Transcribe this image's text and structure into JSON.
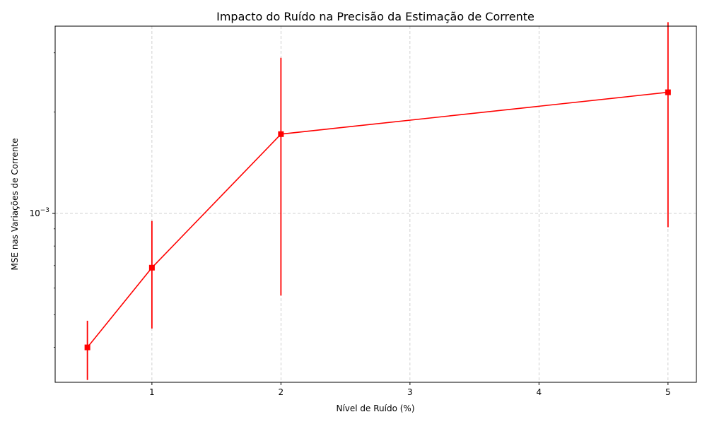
{
  "chart_data": {
    "type": "line",
    "title": "Impacto do Ruído na Precisão da Estimação de Corrente",
    "xlabel": "Nível de Ruído (%)",
    "ylabel": "MSE nas Variações de Corrente",
    "xlim": [
      0.25,
      5.22
    ],
    "ylim": [
      0.000315,
      0.0036
    ],
    "yscale": "log",
    "x_ticks": [
      1,
      2,
      3,
      4,
      5
    ],
    "y_ticks": [
      {
        "value": 0.001,
        "label_base": "10",
        "label_exp": "−3"
      }
    ],
    "y_minor_ticks": [
      0.0004,
      0.0005,
      0.0006,
      0.0007,
      0.0008,
      0.0009,
      0.002,
      0.003
    ],
    "grid": true,
    "color": "#ff0000",
    "marker": "square",
    "series": [
      {
        "x": [
          0.5,
          1,
          2,
          5
        ],
        "y": [
          0.0004,
          0.00069,
          0.00172,
          0.00229
        ],
        "err_low": [
          0.00032,
          0.000455,
          0.00057,
          0.00091
        ],
        "err_high": [
          0.00048,
          0.00095,
          0.0029,
          0.0037
        ]
      }
    ]
  }
}
